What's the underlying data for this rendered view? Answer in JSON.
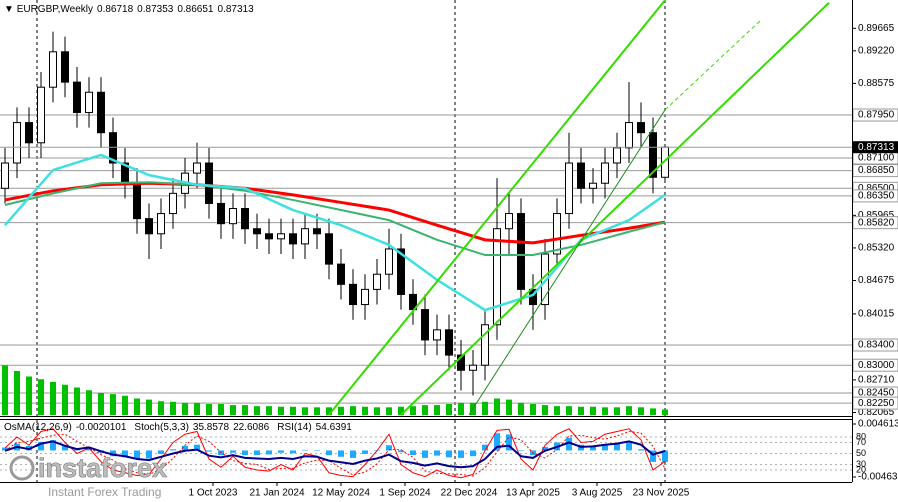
{
  "chart_data": [
    {
      "type": "candlestick",
      "title": "EURGBP,Weekly",
      "x": [
        0,
        3,
        6,
        9,
        12,
        15,
        18,
        21,
        24,
        27,
        30,
        33,
        36,
        39,
        42,
        45,
        48,
        51,
        54,
        57,
        60,
        63,
        66,
        69,
        72,
        75,
        78,
        81,
        84,
        87,
        90,
        93,
        96,
        99,
        102,
        105,
        108,
        111,
        114,
        117,
        120,
        123,
        126,
        129,
        132,
        135,
        138,
        141,
        144,
        147,
        150,
        153,
        156,
        159,
        162,
        165
      ],
      "open": [
        0.865,
        0.87,
        0.878,
        0.874,
        0.885,
        0.892,
        0.886,
        0.88,
        0.884,
        0.876,
        0.87,
        0.866,
        0.859,
        0.856,
        0.86,
        0.864,
        0.868,
        0.87,
        0.862,
        0.858,
        0.861,
        0.857,
        0.856,
        0.855,
        0.856,
        0.854,
        0.857,
        0.856,
        0.85,
        0.846,
        0.842,
        0.845,
        0.848,
        0.853,
        0.844,
        0.841,
        0.835,
        0.837,
        0.832,
        0.829,
        0.83,
        0.838,
        0.857,
        0.86,
        0.845,
        0.842,
        0.852,
        0.86,
        0.87,
        0.865,
        0.866,
        0.87,
        0.873,
        0.878,
        0.876,
        0.86718
      ],
      "high": [
        0.873,
        0.881,
        0.881,
        0.888,
        0.896,
        0.895,
        0.889,
        0.887,
        0.887,
        0.879,
        0.873,
        0.869,
        0.862,
        0.863,
        0.867,
        0.871,
        0.874,
        0.873,
        0.865,
        0.864,
        0.864,
        0.86,
        0.859,
        0.859,
        0.859,
        0.86,
        0.86,
        0.859,
        0.853,
        0.849,
        0.848,
        0.851,
        0.857,
        0.856,
        0.847,
        0.844,
        0.84,
        0.84,
        0.835,
        0.833,
        0.841,
        0.867,
        0.864,
        0.863,
        0.848,
        0.855,
        0.863,
        0.876,
        0.873,
        0.869,
        0.873,
        0.876,
        0.886,
        0.882,
        0.879,
        0.87353
      ],
      "low": [
        0.862,
        0.867,
        0.871,
        0.871,
        0.882,
        0.883,
        0.877,
        0.877,
        0.873,
        0.867,
        0.863,
        0.856,
        0.851,
        0.853,
        0.857,
        0.861,
        0.865,
        0.859,
        0.855,
        0.855,
        0.854,
        0.853,
        0.852,
        0.852,
        0.851,
        0.851,
        0.853,
        0.847,
        0.843,
        0.839,
        0.839,
        0.842,
        0.845,
        0.841,
        0.838,
        0.832,
        0.832,
        0.829,
        0.825,
        0.824,
        0.827,
        0.835,
        0.852,
        0.842,
        0.837,
        0.839,
        0.849,
        0.857,
        0.862,
        0.862,
        0.863,
        0.867,
        0.87,
        0.873,
        0.864,
        0.86651
      ],
      "close": [
        0.87,
        0.878,
        0.874,
        0.885,
        0.892,
        0.886,
        0.88,
        0.884,
        0.876,
        0.87,
        0.866,
        0.859,
        0.856,
        0.86,
        0.864,
        0.868,
        0.87,
        0.862,
        0.858,
        0.861,
        0.857,
        0.856,
        0.855,
        0.856,
        0.854,
        0.857,
        0.856,
        0.85,
        0.846,
        0.842,
        0.845,
        0.848,
        0.853,
        0.844,
        0.841,
        0.835,
        0.837,
        0.832,
        0.829,
        0.83,
        0.838,
        0.857,
        0.86,
        0.845,
        0.842,
        0.852,
        0.86,
        0.87,
        0.865,
        0.866,
        0.87,
        0.873,
        0.878,
        0.876,
        0.86718,
        0.87313
      ],
      "volumes": [
        90,
        80,
        70,
        65,
        60,
        55,
        50,
        45,
        40,
        38,
        35,
        30,
        28,
        25,
        24,
        22,
        22,
        20,
        20,
        18,
        18,
        16,
        16,
        15,
        15,
        14,
        14,
        14,
        15,
        16,
        15,
        14,
        14,
        15,
        16,
        18,
        18,
        20,
        22,
        22,
        24,
        30,
        28,
        22,
        20,
        18,
        16,
        16,
        15,
        15,
        14,
        14,
        16,
        14,
        12,
        10
      ],
      "volume_color": "#00c000",
      "xlim": [
        -1.25,
        211.75
      ],
      "xticks": [
        {
          "value": 52,
          "label": "1 Oct 2023"
        },
        {
          "value": 68,
          "label": "21 Jan 2024"
        },
        {
          "value": 84,
          "label": "12 May 2024"
        },
        {
          "value": 100,
          "label": "1 Sep 2024"
        },
        {
          "value": 116,
          "label": "22 Dec 2024"
        },
        {
          "value": 132,
          "label": "13 Apr 2025"
        },
        {
          "value": 148,
          "label": "3 Aug 2025"
        },
        {
          "value": 164,
          "label": "23 Nov 2025"
        }
      ],
      "ylim": [
        0.82015,
        0.90225
      ],
      "yticks": [
        0.89665,
        {
          "value": 0.8922,
          "label": "0.89220"
        },
        0.88575,
        0.85965,
        {
          "value": 0.8532,
          "label": "0.85320"
        },
        0.84675,
        0.84015,
        {
          "value": 0.8271,
          "label": "0.82710"
        },
        0.82065
      ],
      "levels": [
        {
          "value": 0.8795,
          "label": "0.87950"
        },
        {
          "value": 0.871,
          "label": "0.87100"
        },
        {
          "value": 0.8685,
          "label": "0.86850"
        },
        {
          "value": 0.865,
          "label": "0.86500"
        },
        {
          "value": 0.8635,
          "label": "0.86350"
        },
        {
          "value": 0.8582,
          "label": "0.85820"
        },
        {
          "value": 0.834,
          "label": "0.83400"
        },
        {
          "value": 0.83,
          "label": "0.83000"
        },
        {
          "value": 0.8245,
          "label": "0.82450"
        },
        {
          "value": 0.8225,
          "label": "0.82250"
        }
      ],
      "lines": [
        {
          "color": "#ff0000",
          "width": 3,
          "x": [
            0,
            12,
            24,
            36,
            48,
            60,
            72,
            84,
            96,
            108,
            120,
            132,
            144,
            156,
            165
          ],
          "values": [
            0.8627,
            0.8645,
            0.8657,
            0.866,
            0.8657,
            0.865,
            0.8637,
            0.8622,
            0.8607,
            0.8577,
            0.8548,
            0.8542,
            0.8557,
            0.8571,
            0.8583
          ]
        },
        {
          "color": "#3cb371",
          "width": 2,
          "x": [
            0,
            12,
            24,
            36,
            48,
            60,
            72,
            84,
            96,
            108,
            120,
            132,
            144,
            156,
            165
          ],
          "values": [
            0.8617,
            0.864,
            0.866,
            0.8662,
            0.8657,
            0.8645,
            0.8627,
            0.8607,
            0.8587,
            0.8548,
            0.8518,
            0.8518,
            0.8538,
            0.8564,
            0.8583
          ]
        },
        {
          "color": "#40e0e0",
          "width": 2.5,
          "x": [
            0,
            12,
            24,
            36,
            48,
            60,
            72,
            84,
            96,
            108,
            120,
            132,
            144,
            156,
            165
          ],
          "values": [
            0.8577,
            0.8686,
            0.8716,
            0.8676,
            0.8657,
            0.865,
            0.8607,
            0.8577,
            0.8538,
            0.8469,
            0.8409,
            0.8439,
            0.8548,
            0.8587,
            0.8637
          ]
        }
      ],
      "trendlines": [
        {
          "color": "#33dd00",
          "width": 2,
          "style": "solid",
          "x": [
            81,
            165
          ],
          "y": [
            0.8202,
            0.9022
          ]
        },
        {
          "color": "#33dd00",
          "width": 2,
          "style": "solid",
          "x": [
            99,
            206
          ],
          "y": [
            0.8202,
            0.9017
          ]
        },
        {
          "color": "#228b22",
          "width": 1,
          "style": "solid",
          "x": [
            116,
            165
          ],
          "y": [
            0.8202,
            0.8805
          ]
        },
        {
          "color": "#33dd00",
          "width": 1,
          "style": "dashed",
          "x": [
            165,
            189
          ],
          "y": [
            0.8805,
            0.8983
          ]
        }
      ]
    },
    {
      "type": "oscillator",
      "ylim": [
        -0.004631,
        0.0046135
      ],
      "yticks": [
        0.0046135,
        -0.004631
      ],
      "y2lim": [
        0,
        100
      ],
      "y2ticks": [
        80,
        70,
        50,
        30,
        20
      ],
      "osma": {
        "label": "OsMA(12,26,9)",
        "color": "#1eaaff",
        "values": [
          0.0005,
          0.0012,
          0.0008,
          0.0015,
          0.0018,
          0.001,
          0.0003,
          0.0004,
          -0.0004,
          -0.001,
          -0.0012,
          -0.0015,
          -0.0014,
          -0.0006,
          0.0002,
          0.0008,
          0.001,
          -0.0002,
          -0.0008,
          -0.0004,
          -0.0008,
          -0.0008,
          -0.0007,
          -0.0004,
          -0.0005,
          0.0001,
          0,
          -0.0008,
          -0.0011,
          -0.0013,
          -0.0006,
          0.0001,
          0.0009,
          -0.0003,
          -0.0008,
          -0.0013,
          -0.0009,
          -0.0012,
          -0.0013,
          -0.001,
          0.001,
          0.003,
          0.0028,
          0,
          -0.0008,
          0.0006,
          0.0014,
          0.0022,
          0.001,
          0.0008,
          0.001,
          0.0012,
          0.0015,
          0.0002,
          -0.002,
          -0.0020101
        ]
      },
      "stoch": {
        "label": "Stoch(5,3,3)",
        "color": "#ff0000",
        "main": [
          60,
          80,
          65,
          90,
          95,
          70,
          50,
          60,
          35,
          20,
          15,
          10,
          12,
          40,
          70,
          85,
          90,
          40,
          25,
          45,
          25,
          20,
          18,
          30,
          20,
          50,
          45,
          15,
          10,
          8,
          30,
          55,
          85,
          30,
          15,
          8,
          20,
          10,
          6,
          12,
          55,
          92,
          94,
          40,
          20,
          65,
          85,
          95,
          70,
          72,
          85,
          90,
          95,
          75,
          20,
          35.8578
        ],
        "signal": [
          55,
          70,
          72,
          78,
          83,
          85,
          72,
          60,
          48,
          38,
          23,
          15,
          12,
          21,
          41,
          65,
          82,
          72,
          52,
          37,
          32,
          30,
          21,
          23,
          23,
          33,
          38,
          37,
          23,
          11,
          16,
          31,
          57,
          57,
          43,
          18,
          14,
          13,
          12,
          9,
          24,
          53,
          80,
          75,
          51,
          42,
          57,
          82,
          83,
          79,
          76,
          82,
          90,
          87,
          63,
          22.6086
        ]
      },
      "rsi": {
        "label": "RSI(14)",
        "color": "#00008b",
        "values": [
          55,
          62,
          58,
          68,
          72,
          64,
          58,
          61,
          54,
          48,
          45,
          40,
          38,
          44,
          50,
          55,
          57,
          46,
          43,
          47,
          42,
          41,
          40,
          42,
          40,
          45,
          44,
          37,
          34,
          31,
          37,
          41,
          48,
          36,
          33,
          28,
          32,
          27,
          25,
          27,
          40,
          62,
          64,
          45,
          42,
          55,
          62,
          70,
          62,
          63,
          66,
          68,
          72,
          66,
          48,
          54.6391
        ]
      }
    }
  ],
  "watermark": {
    "brand": "instaforex",
    "tagline": "Instant Forex Trading"
  }
}
